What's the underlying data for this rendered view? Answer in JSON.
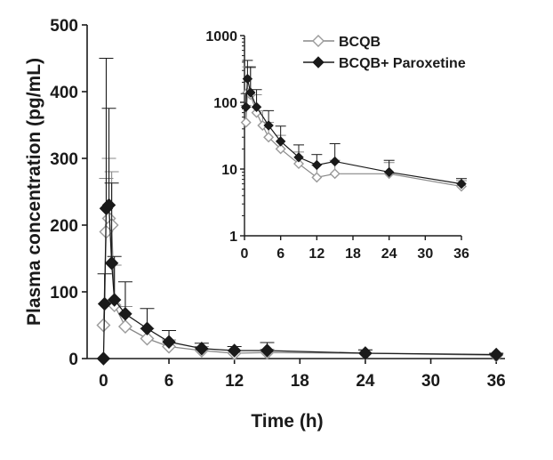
{
  "chart_data": [
    {
      "type": "line",
      "panel": "main",
      "title": "",
      "xlabel": "Time (h)",
      "ylabel": "Plasma concentration (pg/mL)",
      "xlim": [
        -1.5,
        36.8
      ],
      "ylim": [
        0,
        500
      ],
      "yscale": "linear",
      "xticks": [
        0,
        6,
        12,
        18,
        24,
        30,
        36
      ],
      "yticks": [
        0,
        100,
        200,
        300,
        400,
        500
      ],
      "legend_position": "top-right (inside inset)",
      "series": [
        {
          "name": "BCQB",
          "marker": "open-diamond",
          "color": "#888888",
          "x": [
            0,
            0.25,
            0.5,
            0.75,
            1,
            2,
            4,
            6,
            9,
            12,
            15,
            24,
            36
          ],
          "y": [
            50,
            190,
            210,
            200,
            80,
            48,
            30,
            18,
            12,
            8,
            9,
            8,
            5
          ],
          "err": [
            0,
            80,
            90,
            80,
            60,
            30,
            15,
            10,
            6,
            4,
            5,
            5,
            2
          ]
        },
        {
          "name": "BCQB+ Paroxetine",
          "marker": "filled-diamond",
          "color": "#1a1a1a",
          "x": [
            0,
            0.1,
            0.25,
            0.5,
            0.75,
            1,
            2,
            4,
            6,
            9,
            12,
            15,
            24,
            36
          ],
          "y": [
            0,
            82,
            225,
            230,
            143,
            88,
            67,
            45,
            25,
            15,
            12,
            12,
            8,
            6
          ],
          "err": [
            0,
            45,
            225,
            145,
            120,
            65,
            48,
            30,
            17,
            8,
            6,
            12,
            5,
            2
          ]
        }
      ]
    },
    {
      "type": "line",
      "panel": "inset",
      "title": "",
      "xlabel": "",
      "ylabel": "",
      "xlim": [
        0,
        36
      ],
      "ylim": [
        1,
        1000
      ],
      "yscale": "log",
      "xticks": [
        0,
        6,
        12,
        18,
        24,
        30,
        36
      ],
      "yticks": [
        1,
        10,
        100,
        1000
      ],
      "series": [
        {
          "name": "BCQB",
          "marker": "open-diamond",
          "color": "#888888",
          "x": [
            0.25,
            0.5,
            1,
            2,
            3,
            4,
            6,
            9,
            12,
            15,
            24,
            36
          ],
          "y": [
            50,
            140,
            130,
            70,
            45,
            30,
            20,
            12,
            7.5,
            8.5,
            8.5,
            5.5
          ],
          "err": [
            40,
            200,
            200,
            60,
            30,
            20,
            12,
            6,
            4,
            5,
            4,
            1.2
          ]
        },
        {
          "name": "BCQB+ Paroxetine",
          "marker": "filled-diamond",
          "color": "#1a1a1a",
          "x": [
            0.25,
            0.5,
            1,
            2,
            4,
            6,
            9,
            12,
            15,
            24,
            36
          ],
          "y": [
            85,
            225,
            140,
            85,
            45,
            26,
            15,
            11.5,
            13,
            9,
            6
          ],
          "err": [
            50,
            200,
            200,
            70,
            30,
            18,
            8,
            5,
            11,
            4.5,
            1.2
          ]
        }
      ]
    }
  ]
}
